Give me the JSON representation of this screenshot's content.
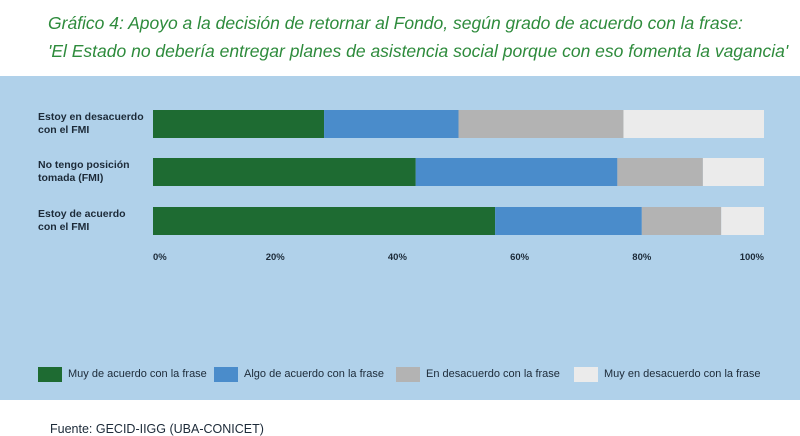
{
  "title": {
    "line1": "Gráfico 4:  Apoyo a la decisión de retornar al Fondo, según grado de acuerdo con la frase:",
    "line2": "'El Estado no debería entregar planes de asistencia social porque con eso fomenta la vagancia'"
  },
  "source": "Fuente: GECID-IIGG (UBA-CONICET)",
  "chart_data": {
    "type": "bar",
    "orientation": "horizontal",
    "stacked": true,
    "categories": [
      [
        "Estoy en desacuerdo",
        "con el FMI"
      ],
      [
        "No tengo posición",
        "tomada (FMI)"
      ],
      [
        "Estoy de acuerdo",
        "con el FMI"
      ]
    ],
    "series": [
      {
        "name": "Muy de acuerdo con la frase",
        "color": "#1e6b32",
        "values": [
          28,
          43,
          56
        ]
      },
      {
        "name": "Algo de acuerdo con la frase",
        "color": "#4a8ccb",
        "values": [
          22,
          33,
          24
        ]
      },
      {
        "name": "En desacuerdo con la frase",
        "color": "#b3b3b3",
        "values": [
          27,
          14,
          13
        ]
      },
      {
        "name": "Muy en desacuerdo con la frase",
        "color": "#ebebeb",
        "values": [
          23,
          10,
          7
        ]
      }
    ],
    "xticks": [
      "0%",
      "20%",
      "40%",
      "60%",
      "80%",
      "100%"
    ],
    "xlim": [
      0,
      100
    ],
    "xlabel": "",
    "ylabel": "",
    "legend_position": "bottom"
  }
}
